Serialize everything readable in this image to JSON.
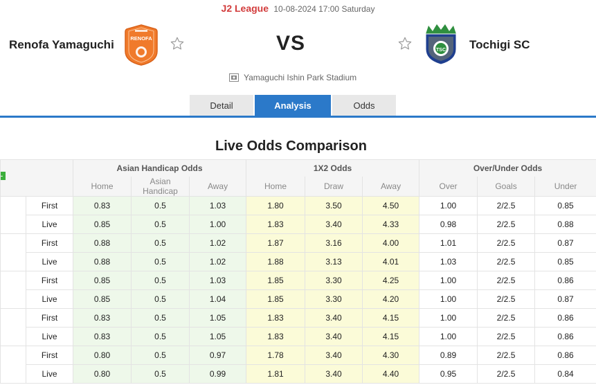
{
  "match": {
    "league": "J2 League",
    "datetime": "10-08-2024 17:00 Saturday",
    "home_team": "Renofa Yamaguchi",
    "away_team": "Tochigi SC",
    "vs": "VS",
    "venue": "Yamaguchi Ishin Park Stadium",
    "home_logo_text": "RENOFA",
    "away_logo_text": "TSC"
  },
  "tabs": [
    {
      "label": "Detail",
      "active": false
    },
    {
      "label": "Analysis",
      "active": true
    },
    {
      "label": "Odds",
      "active": false
    }
  ],
  "odds_section": {
    "title": "Live Odds Comparison",
    "groups": [
      "Asian Handicap Odds",
      "1X2 Odds",
      "Over/Under Odds"
    ],
    "subheaders": [
      "Home",
      "Asian Handicap",
      "Away",
      "Home",
      "Draw",
      "Away",
      "Over",
      "Goals",
      "Under"
    ],
    "toggle_label": "-",
    "rows": [
      {
        "kind": "First",
        "values": [
          "0.83",
          "0.5",
          "1.03",
          "1.80",
          "3.50",
          "4.50",
          "1.00",
          "2/2.5",
          "0.85"
        ]
      },
      {
        "kind": "Live",
        "values": [
          "0.85",
          "0.5",
          "1.00",
          "1.83",
          "3.40",
          "4.33",
          "0.98",
          "2/2.5",
          "0.88"
        ]
      },
      {
        "kind": "First",
        "values": [
          "0.88",
          "0.5",
          "1.02",
          "1.87",
          "3.16",
          "4.00",
          "1.01",
          "2/2.5",
          "0.87"
        ]
      },
      {
        "kind": "Live",
        "values": [
          "0.88",
          "0.5",
          "1.02",
          "1.88",
          "3.13",
          "4.01",
          "1.03",
          "2/2.5",
          "0.85"
        ]
      },
      {
        "kind": "First",
        "values": [
          "0.85",
          "0.5",
          "1.03",
          "1.85",
          "3.30",
          "4.25",
          "1.00",
          "2/2.5",
          "0.86"
        ]
      },
      {
        "kind": "Live",
        "values": [
          "0.85",
          "0.5",
          "1.04",
          "1.85",
          "3.30",
          "4.20",
          "1.00",
          "2/2.5",
          "0.87"
        ]
      },
      {
        "kind": "First",
        "values": [
          "0.83",
          "0.5",
          "1.05",
          "1.83",
          "3.40",
          "4.15",
          "1.00",
          "2/2.5",
          "0.86"
        ]
      },
      {
        "kind": "Live",
        "values": [
          "0.83",
          "0.5",
          "1.05",
          "1.83",
          "3.40",
          "4.15",
          "1.00",
          "2/2.5",
          "0.86"
        ]
      },
      {
        "kind": "First",
        "values": [
          "0.80",
          "0.5",
          "0.97",
          "1.78",
          "3.40",
          "4.30",
          "0.89",
          "2/2.5",
          "0.86"
        ]
      },
      {
        "kind": "Live",
        "values": [
          "0.80",
          "0.5",
          "0.99",
          "1.81",
          "3.40",
          "4.40",
          "0.95",
          "2/2.5",
          "0.84"
        ]
      }
    ]
  },
  "colors": {
    "league_red": "#d23b3b",
    "tab_active": "#2b79c9",
    "asian_handicap_bg": "#eef8ea",
    "x12_bg": "#fbfbd8",
    "home_logo_orange": "#f07a2b",
    "away_logo_blue": "#1f3f8f",
    "away_logo_green": "#2f8f3f"
  }
}
